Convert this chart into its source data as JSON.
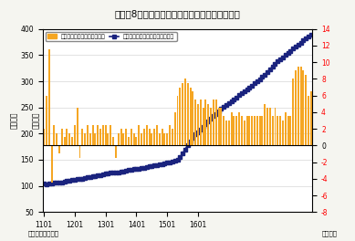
{
  "title": "（図表8）マネタリーベース残高と前月比の推移",
  "ylabel_left": "（兆円）",
  "ylabel_right": "（兆円）",
  "xlabel": "（年月）",
  "source": "（資料）日本銀行",
  "legend_bar": "季節調整済み前月差（右軸）",
  "legend_line": "マネタリーベース末残（原数値）",
  "background_color": "#f5f5f0",
  "plot_bg_color": "#ffffff",
  "bar_color": "#f5a623",
  "line_color": "#1a237e",
  "ylim_left": [
    50,
    400
  ],
  "ylim_right": [
    -8,
    14
  ],
  "yticks_left": [
    50,
    100,
    150,
    200,
    250,
    300,
    350,
    400
  ],
  "yticks_right": [
    -8,
    -6,
    -4,
    -2,
    0,
    2,
    4,
    6,
    8,
    10,
    12,
    14
  ],
  "x_tick_labels": [
    "1101",
    "1201",
    "1301",
    "1401",
    "1501",
    "1601"
  ],
  "monetary_base": [
    105,
    103,
    104,
    105,
    106,
    107,
    106,
    107,
    108,
    109,
    110,
    111,
    112,
    114,
    113,
    114,
    115,
    116,
    117,
    118,
    119,
    120,
    121,
    122,
    123,
    124,
    125,
    126,
    125,
    126,
    127,
    128,
    129,
    130,
    131,
    132,
    132,
    133,
    134,
    135,
    136,
    137,
    138,
    139,
    140,
    141,
    142,
    143,
    144,
    145,
    146,
    148,
    150,
    155,
    162,
    170,
    178,
    185,
    192,
    198,
    203,
    208,
    212,
    218,
    223,
    228,
    233,
    238,
    243,
    248,
    252,
    255,
    258,
    262,
    265,
    269,
    273,
    277,
    280,
    284,
    288,
    292,
    296,
    300,
    304,
    308,
    313,
    318,
    323,
    328,
    333,
    338,
    342,
    346,
    350,
    354,
    358,
    362,
    366,
    370,
    374,
    378,
    382,
    385,
    389
  ],
  "mom_diff": [
    2.0,
    6.0,
    11.5,
    -4.5,
    2.5,
    1.5,
    -1.0,
    2.0,
    1.0,
    2.0,
    1.5,
    1.0,
    2.5,
    4.5,
    -1.5,
    2.0,
    1.5,
    2.5,
    1.5,
    2.5,
    1.5,
    2.5,
    2.0,
    2.5,
    2.5,
    1.5,
    2.5,
    1.0,
    -1.5,
    1.5,
    2.0,
    1.5,
    2.0,
    1.0,
    2.0,
    1.5,
    1.0,
    2.5,
    1.5,
    2.0,
    2.5,
    2.0,
    1.5,
    2.0,
    2.5,
    1.5,
    2.0,
    1.5,
    1.5,
    2.5,
    2.0,
    4.0,
    6.0,
    7.0,
    7.5,
    8.0,
    7.5,
    7.0,
    6.5,
    5.5,
    5.0,
    5.5,
    4.5,
    5.5,
    5.0,
    4.5,
    5.5,
    5.5,
    4.5,
    4.5,
    3.5,
    3.0,
    3.0,
    4.0,
    3.5,
    3.5,
    4.0,
    3.5,
    3.0,
    3.5,
    3.5,
    3.5,
    3.5,
    3.5,
    3.5,
    3.5,
    5.0,
    4.5,
    4.5,
    3.5,
    4.5,
    3.5,
    3.5,
    3.0,
    4.0,
    3.5,
    3.5,
    8.0,
    9.0,
    9.5,
    9.5,
    9.0,
    8.5,
    6.0,
    6.5
  ]
}
